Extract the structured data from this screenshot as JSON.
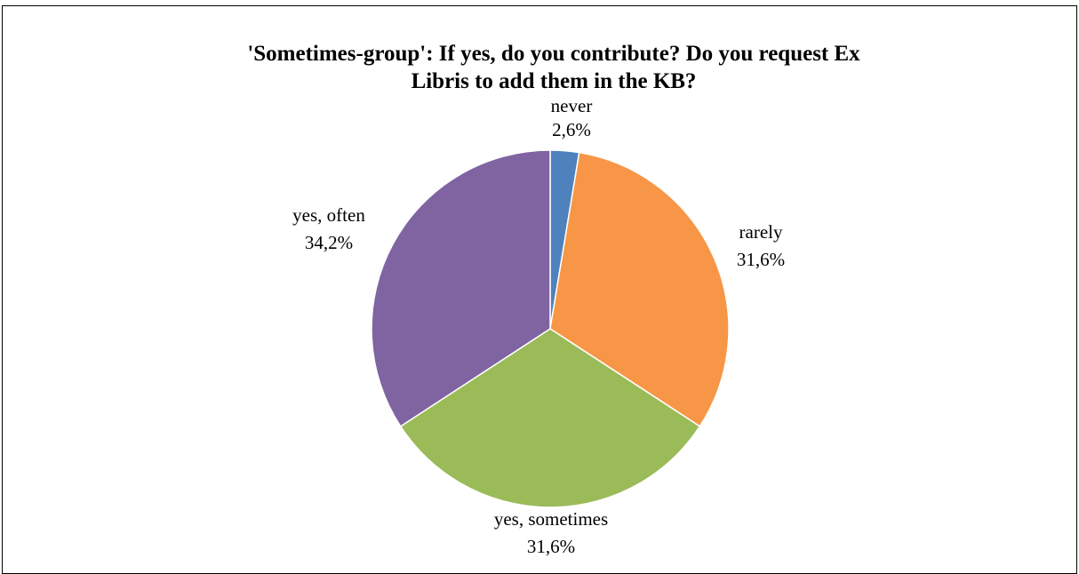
{
  "chart_data": {
    "type": "pie",
    "title_lines": [
      "'Sometimes-group': If yes, do you contribute? Do you request Ex",
      "Libris to add them in the KB?"
    ],
    "start_angle_deg": 0,
    "direction": "clockwise",
    "slices": [
      {
        "label": "never",
        "value": 2.6,
        "value_label": "2,6%",
        "color": "#4f81bd"
      },
      {
        "label": "rarely",
        "value": 31.6,
        "value_label": "31,6%",
        "color": "#f79646"
      },
      {
        "label": "yes, sometimes",
        "value": 31.6,
        "value_label": "31,6%",
        "color": "#9bbb59"
      },
      {
        "label": "yes, often",
        "value": 34.2,
        "value_label": "34,2%",
        "color": "#8064a2"
      }
    ],
    "legend": "none",
    "data_labels": "outside"
  }
}
